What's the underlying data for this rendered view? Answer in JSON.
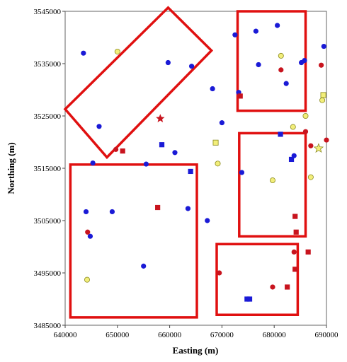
{
  "chart_data": {
    "type": "scatter",
    "title": "",
    "xlabel": "Easting (m)",
    "ylabel": "Northing (m)",
    "xlim": [
      640000,
      690000
    ],
    "ylim": [
      3485000,
      3545000
    ],
    "x_ticks": [
      640000,
      650000,
      660000,
      670000,
      680000,
      690000
    ],
    "y_ticks": [
      3485000,
      3495000,
      3505000,
      3515000,
      3525000,
      3535000,
      3545000
    ],
    "x_tick_labels": [
      "640000",
      "650000",
      "660000",
      "670000",
      "680000",
      "690000"
    ],
    "y_tick_labels": [
      "3485000",
      "3495000",
      "3505000",
      "3515000",
      "3525000",
      "3535000",
      "3545000"
    ],
    "grid": false,
    "colors": {
      "blue": "#1a1ad6",
      "red": "#c8141e",
      "yellow": "#f2ee7a",
      "rect": "#e01010"
    },
    "points": [
      {
        "x": 643500,
        "y": 3537000,
        "color": "blue",
        "marker": "circle"
      },
      {
        "x": 646500,
        "y": 3523000,
        "color": "blue",
        "marker": "circle"
      },
      {
        "x": 645300,
        "y": 3516000,
        "color": "blue",
        "marker": "circle"
      },
      {
        "x": 644000,
        "y": 3506700,
        "color": "blue",
        "marker": "circle"
      },
      {
        "x": 644800,
        "y": 3502000,
        "color": "blue",
        "marker": "circle"
      },
      {
        "x": 649000,
        "y": 3506700,
        "color": "blue",
        "marker": "circle"
      },
      {
        "x": 655000,
        "y": 3496300,
        "color": "blue",
        "marker": "circle"
      },
      {
        "x": 655500,
        "y": 3515800,
        "color": "blue",
        "marker": "circle"
      },
      {
        "x": 659700,
        "y": 3535200,
        "color": "blue",
        "marker": "circle"
      },
      {
        "x": 661000,
        "y": 3518000,
        "color": "blue",
        "marker": "circle"
      },
      {
        "x": 663500,
        "y": 3507300,
        "color": "blue",
        "marker": "circle"
      },
      {
        "x": 664200,
        "y": 3534500,
        "color": "blue",
        "marker": "circle"
      },
      {
        "x": 667200,
        "y": 3505000,
        "color": "blue",
        "marker": "circle"
      },
      {
        "x": 668200,
        "y": 3530200,
        "color": "blue",
        "marker": "circle"
      },
      {
        "x": 670000,
        "y": 3523700,
        "color": "blue",
        "marker": "circle"
      },
      {
        "x": 672500,
        "y": 3540500,
        "color": "blue",
        "marker": "circle"
      },
      {
        "x": 673200,
        "y": 3529500,
        "color": "blue",
        "marker": "circle"
      },
      {
        "x": 673800,
        "y": 3514200,
        "color": "blue",
        "marker": "circle"
      },
      {
        "x": 676500,
        "y": 3541200,
        "color": "blue",
        "marker": "circle"
      },
      {
        "x": 677000,
        "y": 3534800,
        "color": "blue",
        "marker": "circle"
      },
      {
        "x": 680600,
        "y": 3542300,
        "color": "blue",
        "marker": "circle"
      },
      {
        "x": 682300,
        "y": 3531200,
        "color": "blue",
        "marker": "circle"
      },
      {
        "x": 683800,
        "y": 3517400,
        "color": "blue",
        "marker": "circle"
      },
      {
        "x": 685200,
        "y": 3535200,
        "color": "blue",
        "marker": "circle"
      },
      {
        "x": 685800,
        "y": 3535600,
        "color": "blue",
        "marker": "circle"
      },
      {
        "x": 689500,
        "y": 3538300,
        "color": "blue",
        "marker": "circle"
      },
      {
        "x": 650000,
        "y": 3537300,
        "color": "yellow",
        "marker": "circle"
      },
      {
        "x": 644200,
        "y": 3493700,
        "color": "yellow",
        "marker": "circle"
      },
      {
        "x": 669200,
        "y": 3515900,
        "color": "yellow",
        "marker": "circle"
      },
      {
        "x": 679700,
        "y": 3512700,
        "color": "yellow",
        "marker": "circle"
      },
      {
        "x": 681300,
        "y": 3536500,
        "color": "yellow",
        "marker": "circle"
      },
      {
        "x": 683600,
        "y": 3522900,
        "color": "yellow",
        "marker": "circle"
      },
      {
        "x": 686000,
        "y": 3525000,
        "color": "yellow",
        "marker": "circle"
      },
      {
        "x": 687000,
        "y": 3513300,
        "color": "yellow",
        "marker": "circle"
      },
      {
        "x": 689200,
        "y": 3528000,
        "color": "yellow",
        "marker": "circle"
      },
      {
        "x": 649700,
        "y": 3518600,
        "color": "red",
        "marker": "circle"
      },
      {
        "x": 644300,
        "y": 3502800,
        "color": "red",
        "marker": "circle"
      },
      {
        "x": 669500,
        "y": 3495000,
        "color": "red",
        "marker": "circle"
      },
      {
        "x": 679700,
        "y": 3492300,
        "color": "red",
        "marker": "circle"
      },
      {
        "x": 681300,
        "y": 3533800,
        "color": "red",
        "marker": "circle"
      },
      {
        "x": 683800,
        "y": 3499000,
        "color": "red",
        "marker": "circle"
      },
      {
        "x": 686000,
        "y": 3522000,
        "color": "red",
        "marker": "circle"
      },
      {
        "x": 687000,
        "y": 3519300,
        "color": "red",
        "marker": "circle"
      },
      {
        "x": 689000,
        "y": 3534700,
        "color": "red",
        "marker": "circle"
      },
      {
        "x": 690000,
        "y": 3520400,
        "color": "red",
        "marker": "circle"
      },
      {
        "x": 658500,
        "y": 3519500,
        "color": "blue",
        "marker": "square"
      },
      {
        "x": 664000,
        "y": 3514400,
        "color": "blue",
        "marker": "square"
      },
      {
        "x": 681200,
        "y": 3521500,
        "color": "blue",
        "marker": "square"
      },
      {
        "x": 683300,
        "y": 3516700,
        "color": "blue",
        "marker": "square"
      },
      {
        "x": 674800,
        "y": 3490000,
        "color": "blue",
        "marker": "square"
      },
      {
        "x": 675300,
        "y": 3490000,
        "color": "blue",
        "marker": "square"
      },
      {
        "x": 651000,
        "y": 3518300,
        "color": "red",
        "marker": "square"
      },
      {
        "x": 657700,
        "y": 3507500,
        "color": "red",
        "marker": "square"
      },
      {
        "x": 673500,
        "y": 3528800,
        "color": "red",
        "marker": "square"
      },
      {
        "x": 684000,
        "y": 3505800,
        "color": "red",
        "marker": "square"
      },
      {
        "x": 684200,
        "y": 3502800,
        "color": "red",
        "marker": "square"
      },
      {
        "x": 684000,
        "y": 3495700,
        "color": "red",
        "marker": "square"
      },
      {
        "x": 686500,
        "y": 3499000,
        "color": "red",
        "marker": "square"
      },
      {
        "x": 682500,
        "y": 3492300,
        "color": "red",
        "marker": "square"
      },
      {
        "x": 668800,
        "y": 3519900,
        "color": "yellow",
        "marker": "square"
      },
      {
        "x": 689400,
        "y": 3529000,
        "color": "yellow",
        "marker": "square"
      },
      {
        "x": 658200,
        "y": 3524500,
        "color": "red",
        "marker": "star"
      },
      {
        "x": 688500,
        "y": 3518800,
        "color": "yellow",
        "marker": "star"
      }
    ],
    "rectangles": [
      {
        "corners": [
          [
            640000,
            3526300
          ],
          [
            659700,
            3545700
          ],
          [
            668000,
            3537500
          ],
          [
            648000,
            3517100
          ]
        ]
      },
      {
        "corners": [
          [
            641000,
            3486500
          ],
          [
            665200,
            3486500
          ],
          [
            665200,
            3515700
          ],
          [
            641000,
            3515700
          ]
        ]
      },
      {
        "corners": [
          [
            673000,
            3526000
          ],
          [
            686000,
            3526000
          ],
          [
            686000,
            3545000
          ],
          [
            673000,
            3545000
          ]
        ]
      },
      {
        "corners": [
          [
            673300,
            3502000
          ],
          [
            686000,
            3502000
          ],
          [
            686000,
            3521700
          ],
          [
            673300,
            3521700
          ]
        ]
      },
      {
        "corners": [
          [
            669000,
            3487000
          ],
          [
            684500,
            3487000
          ],
          [
            684500,
            3500500
          ],
          [
            669000,
            3500500
          ]
        ]
      }
    ]
  }
}
